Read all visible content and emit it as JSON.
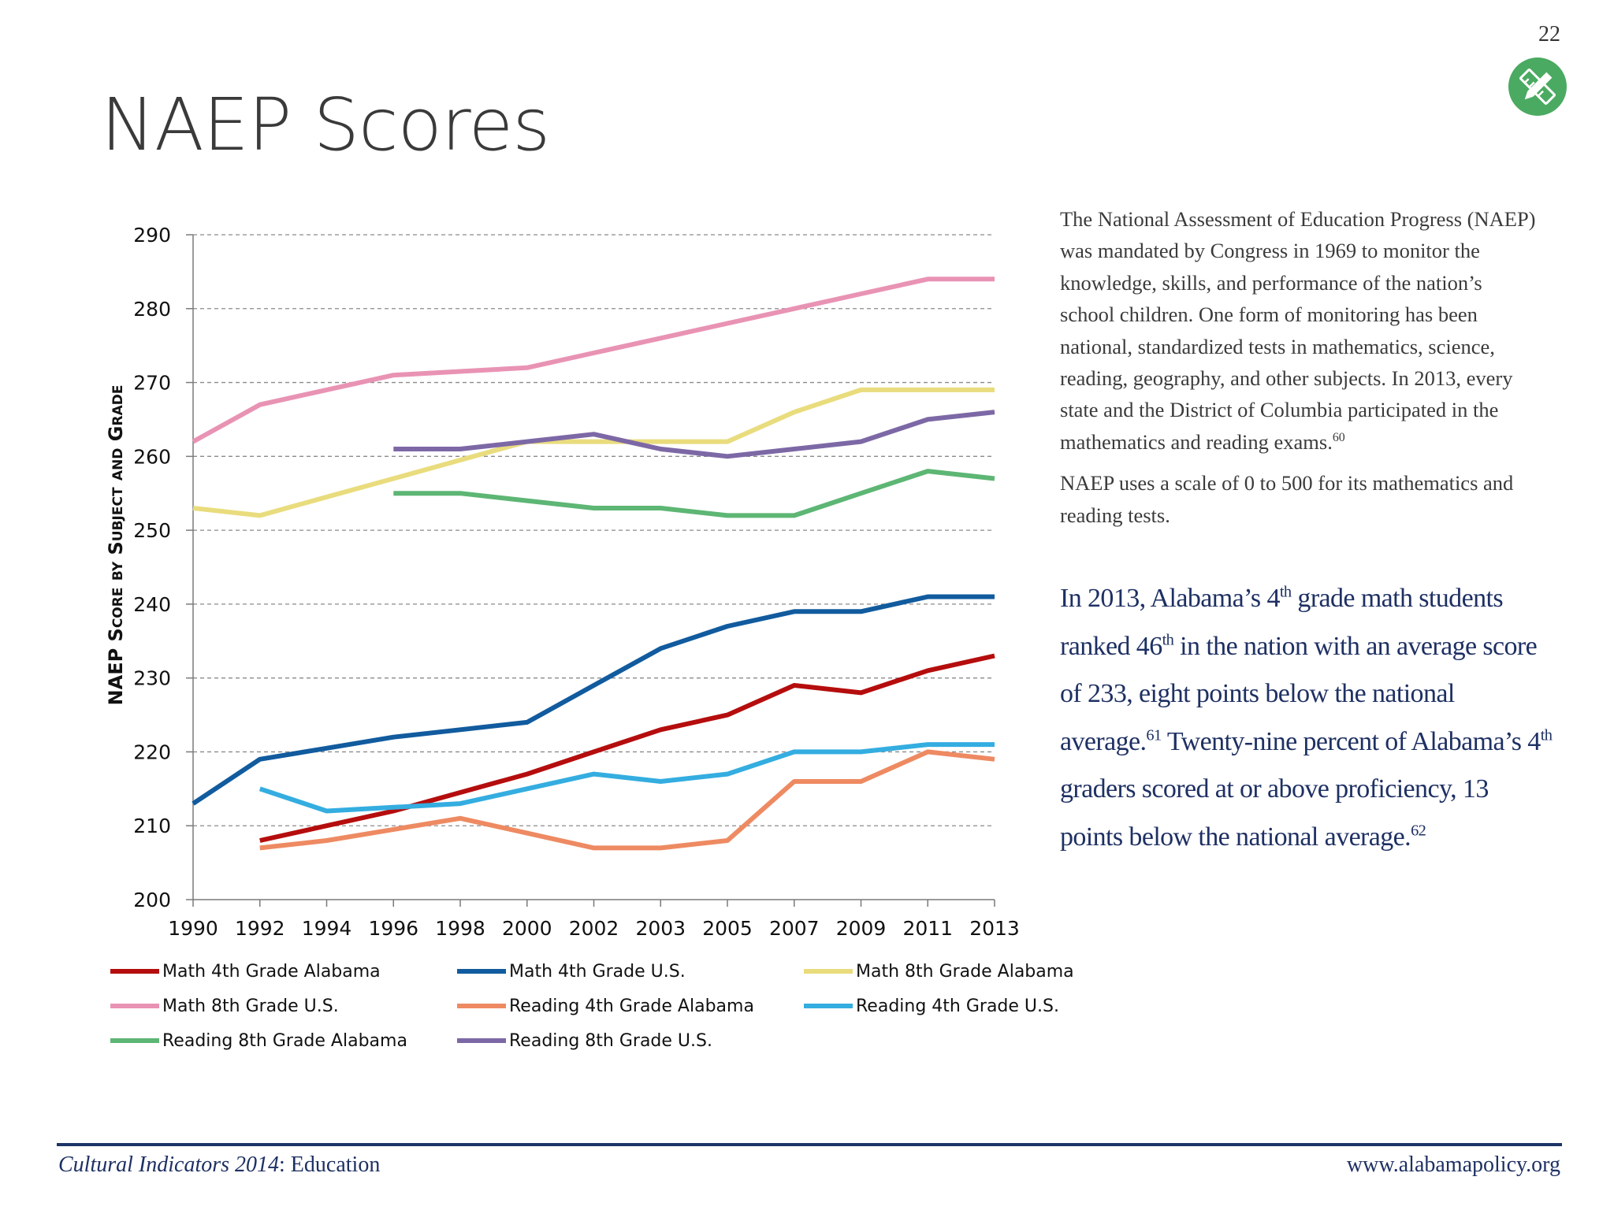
{
  "page": {
    "number": "22",
    "title": "NAEP Scores"
  },
  "badge": {
    "icon": "pencil-ruler-icon",
    "color": "#4aaa61"
  },
  "intro": {
    "p1": "The National Assessment of Education Progress (NAEP) was mandated by Congress in 1969 to monitor the knowledge, skills, and performance of the nation’s school children.  One form of monitoring has been national, standardized tests in mathematics, science, reading, geography, and other subjects.  In 2013, every state and the District of Columbia participated in the mathematics and reading exams.",
    "p1_ref": "60",
    "p2": "NAEP uses a scale of 0 to 500 for its mathematics and reading tests."
  },
  "highlight": {
    "t1": "In 2013, Alabama’s 4",
    "sup1": "th",
    "t2": " grade math students ranked 46",
    "sup2": "th",
    "t3": " in the nation with an average score of 233, eight points below the national average.",
    "ref1": "61",
    "t4": " Twenty-nine percent of Alabama’s 4",
    "sup3": "th",
    "t5": " graders scored at or above proficiency, 13 points below the national average.",
    "ref2": "62"
  },
  "footer": {
    "left_italic": "Cultural Indicators 2014",
    "left_rest": ": Education",
    "right": "www.alabamapolicy.org"
  },
  "chart_data": {
    "type": "line",
    "title": "",
    "xlabel": "",
    "ylabel": "NAEP Score by Subject and Grade",
    "x": [
      "1990",
      "1992",
      "1994",
      "1996",
      "1998",
      "2000",
      "2002",
      "2003",
      "2005",
      "2007",
      "2009",
      "2011",
      "2013"
    ],
    "ylim": [
      200,
      290
    ],
    "yticks": [
      "200",
      "210",
      "220",
      "230",
      "240",
      "250",
      "260",
      "270",
      "280",
      "290"
    ],
    "grid": true,
    "legend_position": "bottom",
    "series": [
      {
        "name": "Math 4th Grade Alabama",
        "color": "#b50d0d",
        "values": [
          null,
          208,
          210,
          212,
          214.5,
          217,
          220,
          223,
          225,
          229,
          228,
          231,
          233
        ]
      },
      {
        "name": "Math 4th Grade U.S.",
        "color": "#115b9e",
        "values": [
          213,
          219,
          220.5,
          222,
          223,
          224,
          229,
          234,
          237,
          239,
          239,
          241,
          241
        ]
      },
      {
        "name": "Math 8th Grade Alabama",
        "color": "#e9dc7d",
        "values": [
          253,
          252,
          254.5,
          257,
          259.5,
          262,
          262,
          262,
          262,
          266,
          269,
          269,
          269
        ]
      },
      {
        "name": "Math 8th Grade U.S.",
        "color": "#e993b4",
        "values": [
          262,
          267,
          269,
          271,
          271.5,
          272,
          274,
          276,
          278,
          280,
          282,
          284,
          284
        ]
      },
      {
        "name": "Reading 4th Grade Alabama",
        "color": "#ee8a62",
        "values": [
          null,
          207,
          208,
          209.5,
          211,
          209,
          207,
          207,
          208,
          216,
          216,
          220,
          219
        ]
      },
      {
        "name": "Reading 4th Grade U.S.",
        "color": "#34ade0",
        "values": [
          null,
          215,
          212,
          212.5,
          213,
          215,
          217,
          216,
          217,
          220,
          220,
          221,
          221
        ]
      },
      {
        "name": "Reading 8th Grade Alabama",
        "color": "#5db674",
        "values": [
          null,
          null,
          null,
          255,
          255,
          254,
          253,
          253,
          252,
          252,
          255,
          258,
          257
        ]
      },
      {
        "name": "Reading 8th Grade U.S.",
        "color": "#7d68a6",
        "values": [
          null,
          null,
          null,
          261,
          261,
          262,
          263,
          261,
          260,
          261,
          262,
          265,
          266
        ]
      }
    ]
  }
}
